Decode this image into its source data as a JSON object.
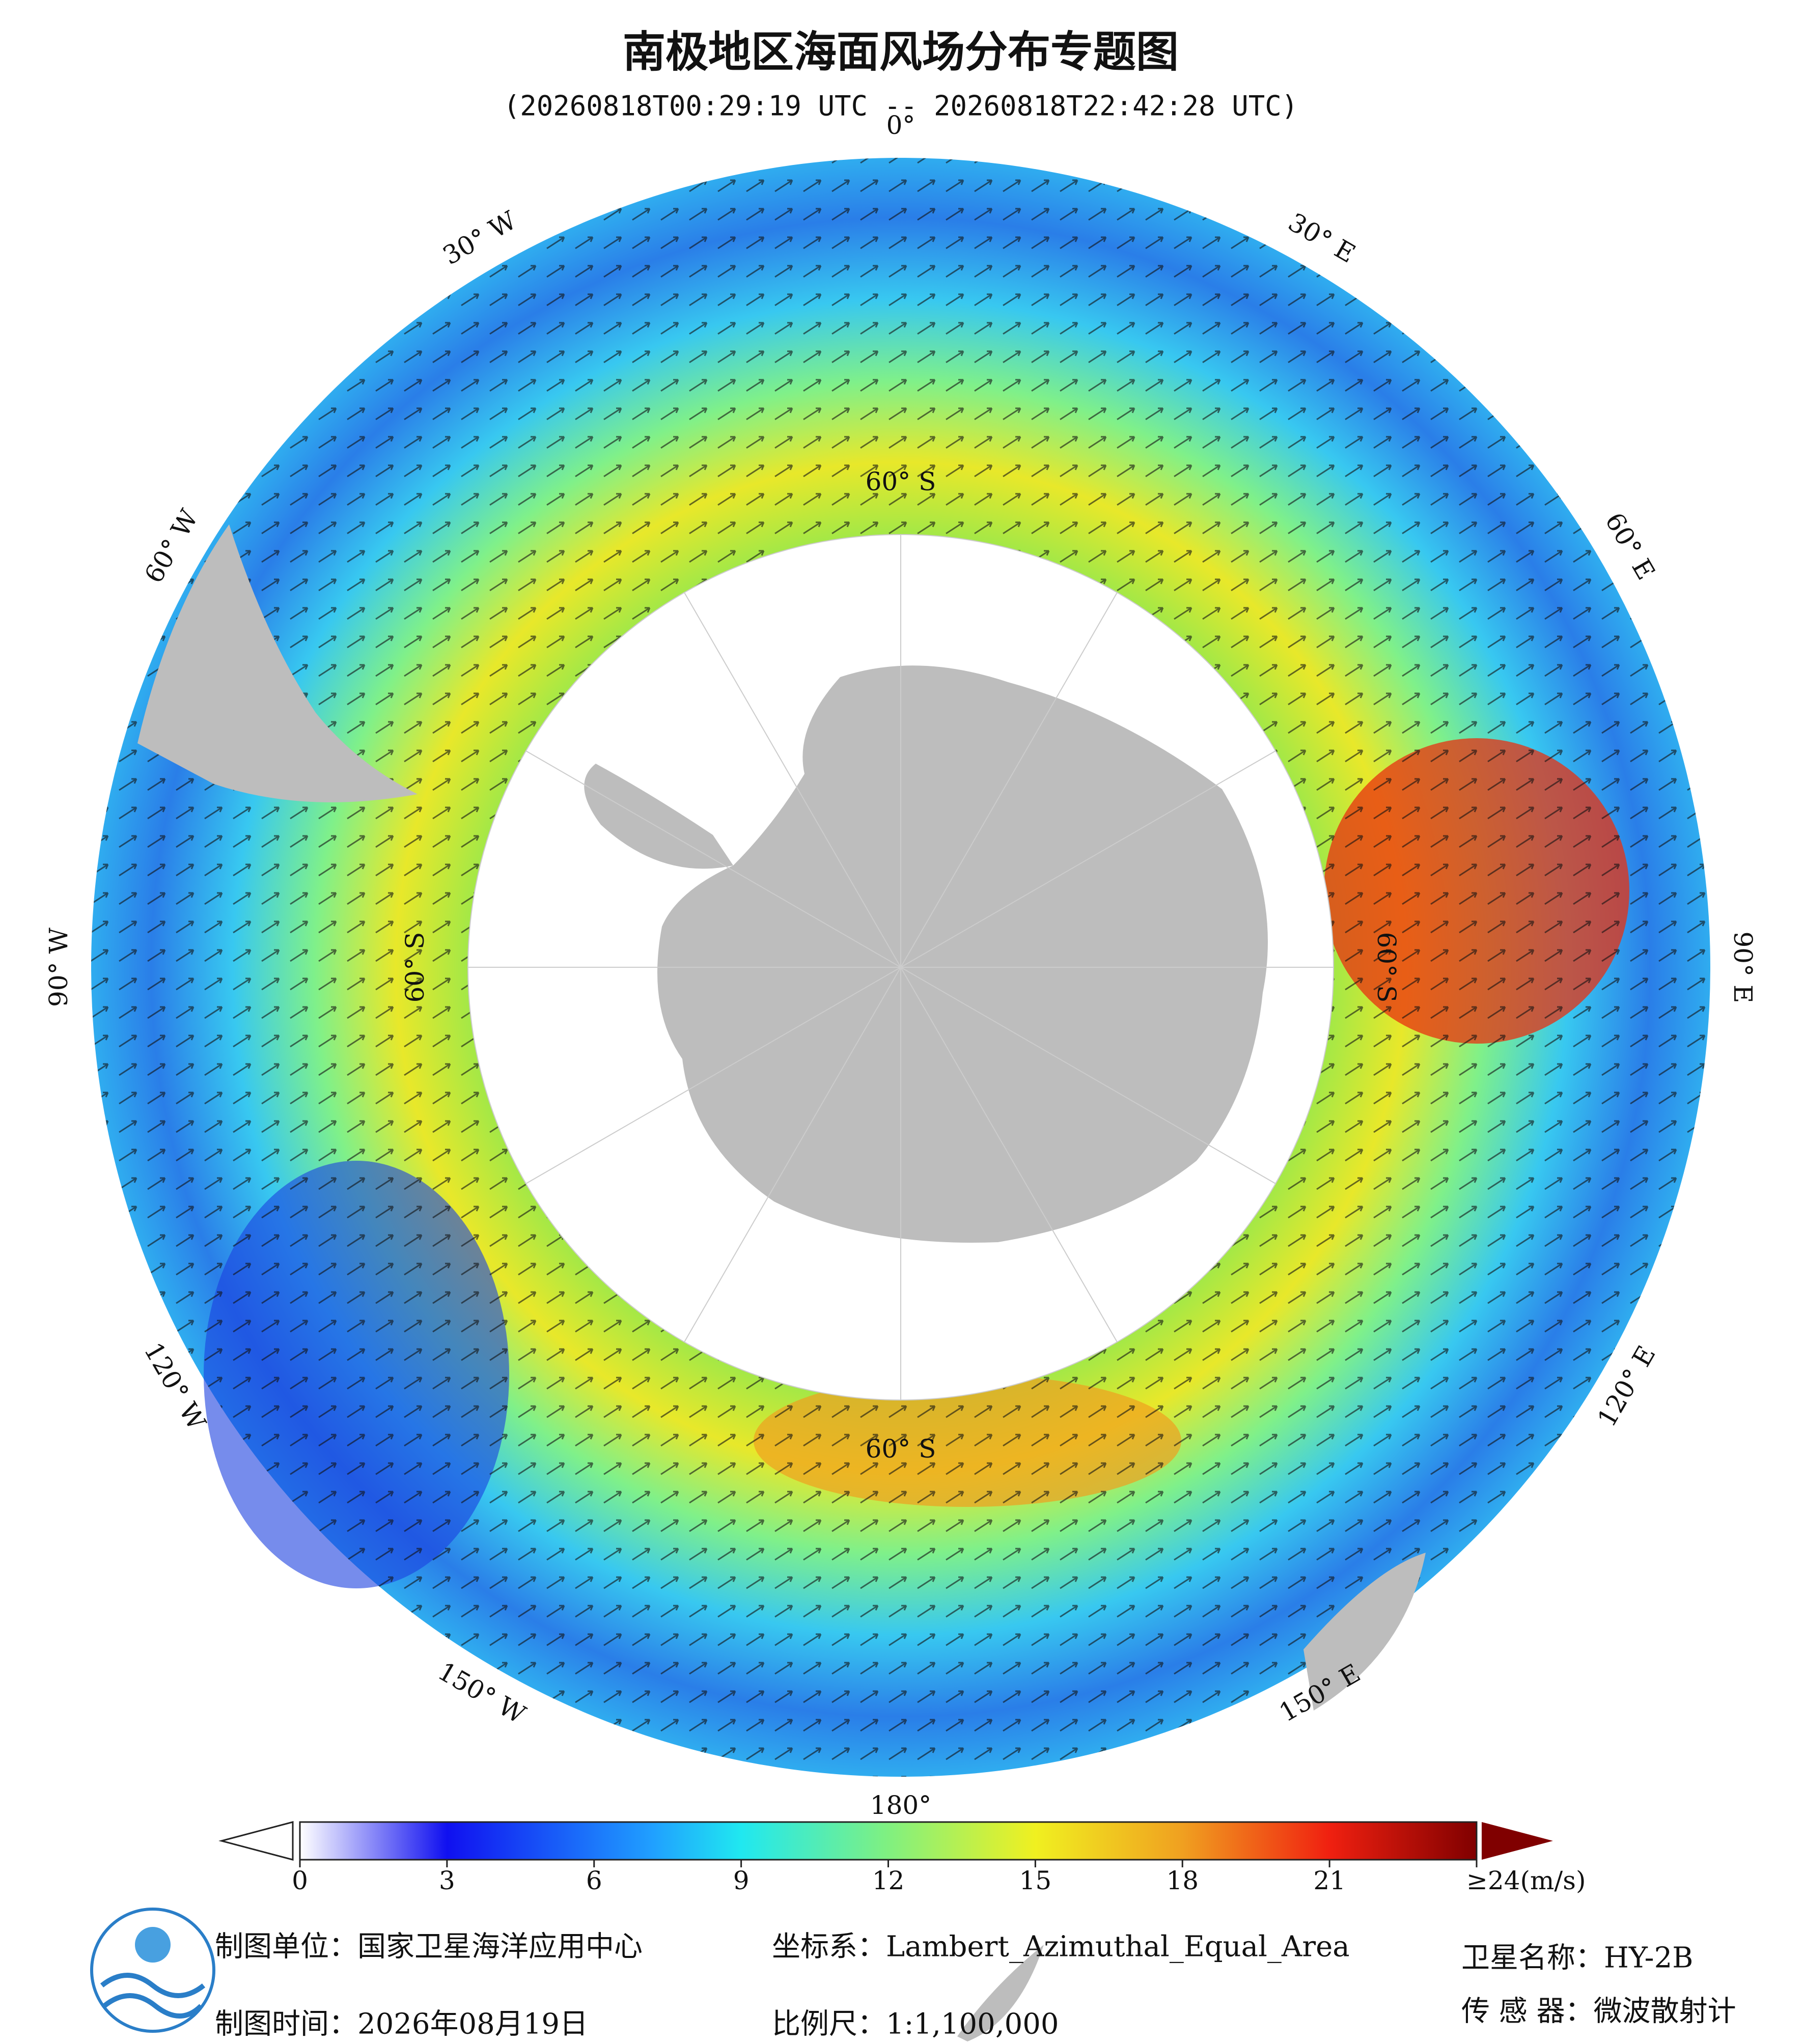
{
  "header": {
    "title": "南极地区海面风场分布专题图",
    "subtitle": "(20260818T00:29:19 UTC -- 20260818T22:42:28 UTC)"
  },
  "map": {
    "longitude_labels": [
      "0°",
      "30° E",
      "60° E",
      "90° E",
      "120° E",
      "150° E",
      "180°",
      "150° W",
      "120° W",
      "90° W",
      "60° W",
      "30° W"
    ],
    "latitude_labels": [
      "60° S",
      "60° S",
      "60° S",
      "60° S"
    ]
  },
  "colorbar": {
    "lim": [
      0,
      24
    ],
    "ticks": [
      0,
      3,
      6,
      9,
      12,
      15,
      18,
      21,
      {
        "value": 24,
        "label": "≥24(m/s)"
      }
    ]
  },
  "footer": {
    "organization": "制图单位：国家卫星海洋应用中心",
    "date": "制图时间：2026年08月19日",
    "projection": "坐标系：Lambert_Azimuthal_Equal_Area",
    "scale": "比例尺：1:1,100,000",
    "satellite": "卫星名称：HY-2B",
    "sensor": "传 感 器：微波散射计"
  }
}
